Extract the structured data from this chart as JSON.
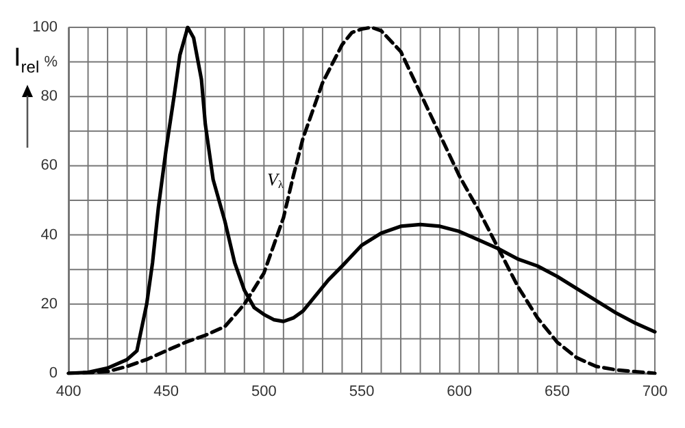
{
  "chart_data": {
    "type": "line",
    "ylabel": "I$_{rel}$",
    "annotations": [
      {
        "text": "V$_{λ}$",
        "x": 510,
        "y": 45
      }
    ],
    "xlim": [
      400,
      700
    ],
    "xticks": [
      400,
      {
        "value": 410,
        "label": null
      },
      {
        "value": 420,
        "label": null
      },
      {
        "value": 430,
        "label": null
      },
      {
        "value": 440,
        "label": null
      },
      450,
      {
        "value": 460,
        "label": null
      },
      {
        "value": 470,
        "label": null
      },
      {
        "value": 480,
        "label": null
      },
      {
        "value": 490,
        "label": null
      },
      500,
      {
        "value": 510,
        "label": null
      },
      {
        "value": 520,
        "label": null
      },
      {
        "value": 530,
        "label": null
      },
      {
        "value": 540,
        "label": null
      },
      550,
      {
        "value": 560,
        "label": null
      },
      {
        "value": 570,
        "label": null
      },
      {
        "value": 580,
        "label": null
      },
      {
        "value": 590,
        "label": null
      },
      600,
      {
        "value": 610,
        "label": null
      },
      {
        "value": 620,
        "label": null
      },
      {
        "value": 630,
        "label": null
      },
      {
        "value": 640,
        "label": null
      },
      650,
      {
        "value": 660,
        "label": null
      },
      {
        "value": 670,
        "label": null
      },
      {
        "value": 680,
        "label": null
      },
      {
        "value": 690,
        "label": null
      },
      700
    ],
    "ylim": [
      0,
      100
    ],
    "yticks": [
      0,
      {
        "value": 10,
        "label": null
      },
      20,
      {
        "value": 30,
        "label": null
      },
      40,
      {
        "value": 50,
        "label": null
      },
      60,
      {
        "value": 70,
        "label": null
      },
      80,
      {
        "value": 90,
        "label": "%"
      },
      100
    ],
    "grid": true,
    "marker": "none",
    "series": [
      {
        "color": "#000000",
        "line_style": "solid",
        "x": [
          400,
          410,
          420,
          430,
          435,
          440,
          443,
          446,
          450,
          454,
          457,
          461,
          464,
          468,
          470,
          474,
          478,
          480,
          485,
          490,
          495,
          500,
          505,
          510,
          515,
          520,
          533,
          540,
          550,
          560,
          570,
          580,
          590,
          600,
          610,
          620,
          630,
          640,
          650,
          660,
          670,
          680,
          690,
          700
        ],
        "values": [
          0,
          0.3,
          1.5,
          4,
          6.5,
          20,
          32,
          48,
          65,
          80,
          92,
          100,
          97,
          85,
          72,
          56,
          48,
          44,
          32,
          24,
          19,
          17,
          15.5,
          15,
          16,
          18,
          27,
          31,
          37,
          40.5,
          42.5,
          43,
          42.5,
          41,
          38.5,
          36,
          33,
          31,
          28,
          24.5,
          21,
          17.5,
          14.5,
          12
        ]
      },
      {
        "color": "#000000",
        "line_style": "dashed",
        "x": [
          400,
          410,
          420,
          430,
          440,
          450,
          460,
          470,
          480,
          490,
          500,
          505,
          510,
          515,
          520,
          530,
          540,
          545,
          550,
          555,
          560,
          570,
          580,
          590,
          600,
          610,
          620,
          630,
          640,
          650,
          660,
          670,
          680,
          690,
          700
        ],
        "values": [
          0,
          0.2,
          0.5,
          2,
          4,
          6.5,
          9,
          11,
          13.5,
          20,
          29,
          37,
          45,
          57,
          68,
          84,
          95,
          98.5,
          99.5,
          100,
          99,
          93,
          81,
          69,
          57,
          47,
          36,
          25,
          16,
          9,
          4.5,
          2,
          1,
          0.5,
          0
        ]
      }
    ]
  }
}
